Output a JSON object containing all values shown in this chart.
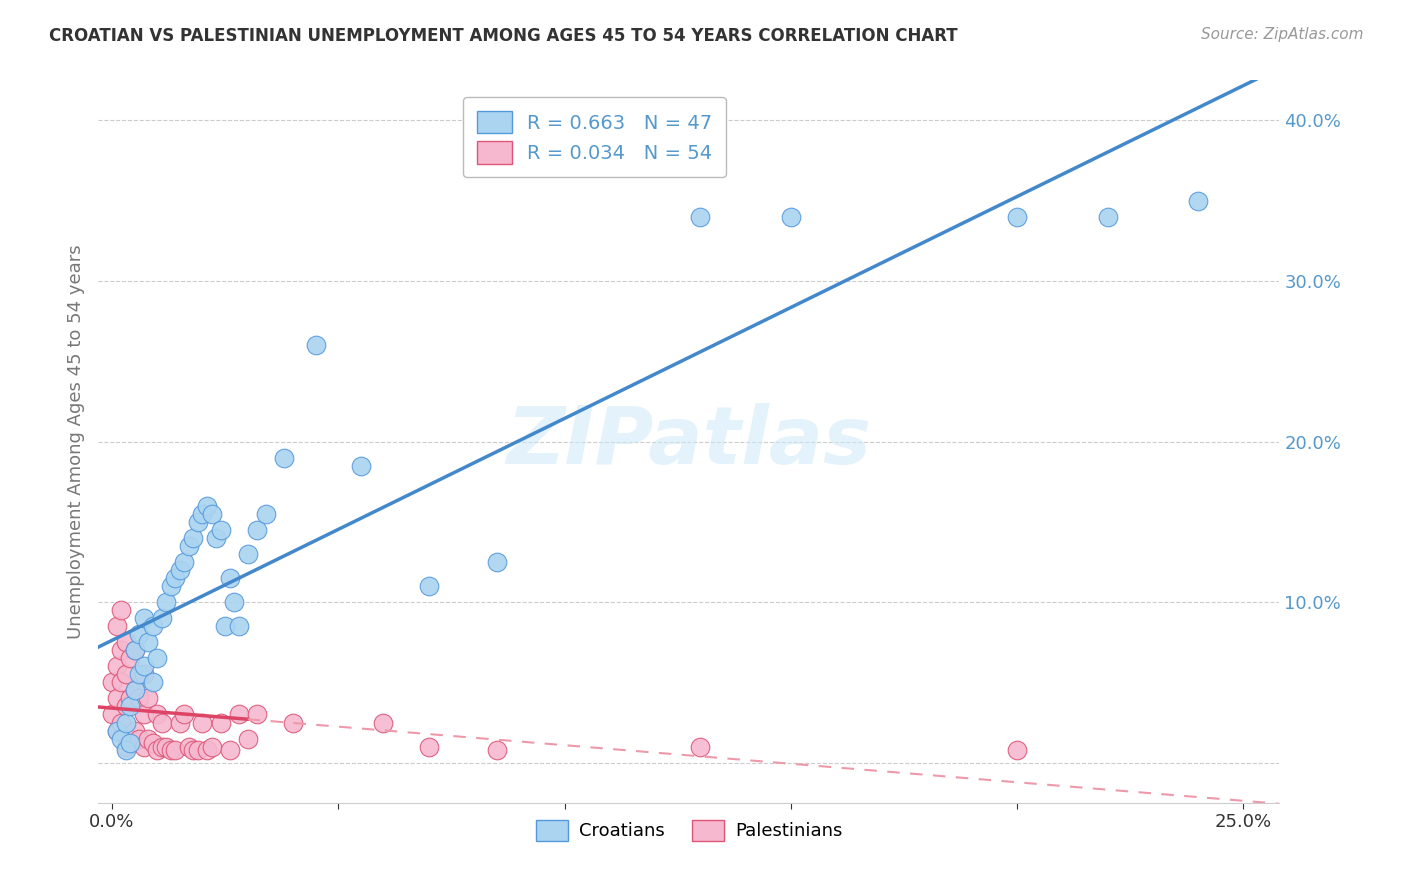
{
  "title": "CROATIAN VS PALESTINIAN UNEMPLOYMENT AMONG AGES 45 TO 54 YEARS CORRELATION CHART",
  "source": "Source: ZipAtlas.com",
  "ylabel": "Unemployment Among Ages 45 to 54 years",
  "legend_croatians": "Croatians",
  "legend_palestinians": "Palestinians",
  "watermark": "ZIPatlas",
  "croatian_color": "#aad4f0",
  "croatian_edge_color": "#5599dd",
  "palestinian_color": "#f5b8cf",
  "palestinian_edge_color": "#dd5577",
  "croatian_line_color": "#4488cc",
  "palestinian_solid_color": "#dd4466",
  "palestinian_dash_color": "#ee99aa",
  "ytick_color": "#5599cc",
  "background": "#ffffff",
  "grid_color": "#cccccc",
  "title_color": "#333333",
  "xmin": -0.003,
  "xmax": 0.258,
  "ymin": -0.025,
  "ymax": 0.425,
  "croatian_x": [
    0.001,
    0.002,
    0.003,
    0.003,
    0.004,
    0.004,
    0.005,
    0.005,
    0.006,
    0.006,
    0.007,
    0.007,
    0.008,
    0.009,
    0.009,
    0.01,
    0.011,
    0.012,
    0.013,
    0.014,
    0.015,
    0.016,
    0.017,
    0.018,
    0.019,
    0.02,
    0.021,
    0.022,
    0.023,
    0.024,
    0.025,
    0.026,
    0.027,
    0.028,
    0.03,
    0.032,
    0.034,
    0.038,
    0.045,
    0.055,
    0.07,
    0.085,
    0.13,
    0.15,
    0.2,
    0.22,
    0.24
  ],
  "croatian_y": [
    0.02,
    0.015,
    0.025,
    0.008,
    0.035,
    0.012,
    0.045,
    0.07,
    0.055,
    0.08,
    0.06,
    0.09,
    0.075,
    0.05,
    0.085,
    0.065,
    0.09,
    0.1,
    0.11,
    0.115,
    0.12,
    0.125,
    0.135,
    0.14,
    0.15,
    0.155,
    0.16,
    0.155,
    0.14,
    0.145,
    0.085,
    0.115,
    0.1,
    0.085,
    0.13,
    0.145,
    0.155,
    0.19,
    0.26,
    0.185,
    0.11,
    0.125,
    0.34,
    0.34,
    0.34,
    0.34,
    0.35
  ],
  "palestinian_x": [
    0.0,
    0.0,
    0.001,
    0.001,
    0.001,
    0.001,
    0.002,
    0.002,
    0.002,
    0.002,
    0.003,
    0.003,
    0.003,
    0.003,
    0.004,
    0.004,
    0.004,
    0.005,
    0.005,
    0.005,
    0.006,
    0.006,
    0.007,
    0.007,
    0.007,
    0.008,
    0.008,
    0.009,
    0.01,
    0.01,
    0.011,
    0.011,
    0.012,
    0.013,
    0.014,
    0.015,
    0.016,
    0.017,
    0.018,
    0.019,
    0.02,
    0.021,
    0.022,
    0.024,
    0.026,
    0.028,
    0.03,
    0.032,
    0.04,
    0.06,
    0.07,
    0.085,
    0.13,
    0.2
  ],
  "palestinian_y": [
    0.03,
    0.05,
    0.02,
    0.04,
    0.06,
    0.085,
    0.025,
    0.05,
    0.07,
    0.095,
    0.01,
    0.035,
    0.055,
    0.075,
    0.015,
    0.04,
    0.065,
    0.02,
    0.045,
    0.07,
    0.015,
    0.04,
    0.01,
    0.03,
    0.055,
    0.015,
    0.04,
    0.012,
    0.008,
    0.03,
    0.01,
    0.025,
    0.01,
    0.008,
    0.008,
    0.025,
    0.03,
    0.01,
    0.008,
    0.008,
    0.025,
    0.008,
    0.01,
    0.025,
    0.008,
    0.03,
    0.015,
    0.03,
    0.025,
    0.025,
    0.01,
    0.008,
    0.01,
    0.008
  ],
  "pal_solid_transition": 0.03,
  "cr_line_x0": -0.003,
  "cr_line_x1": 0.258,
  "pal_line_x0": -0.003,
  "pal_line_x1": 0.258
}
